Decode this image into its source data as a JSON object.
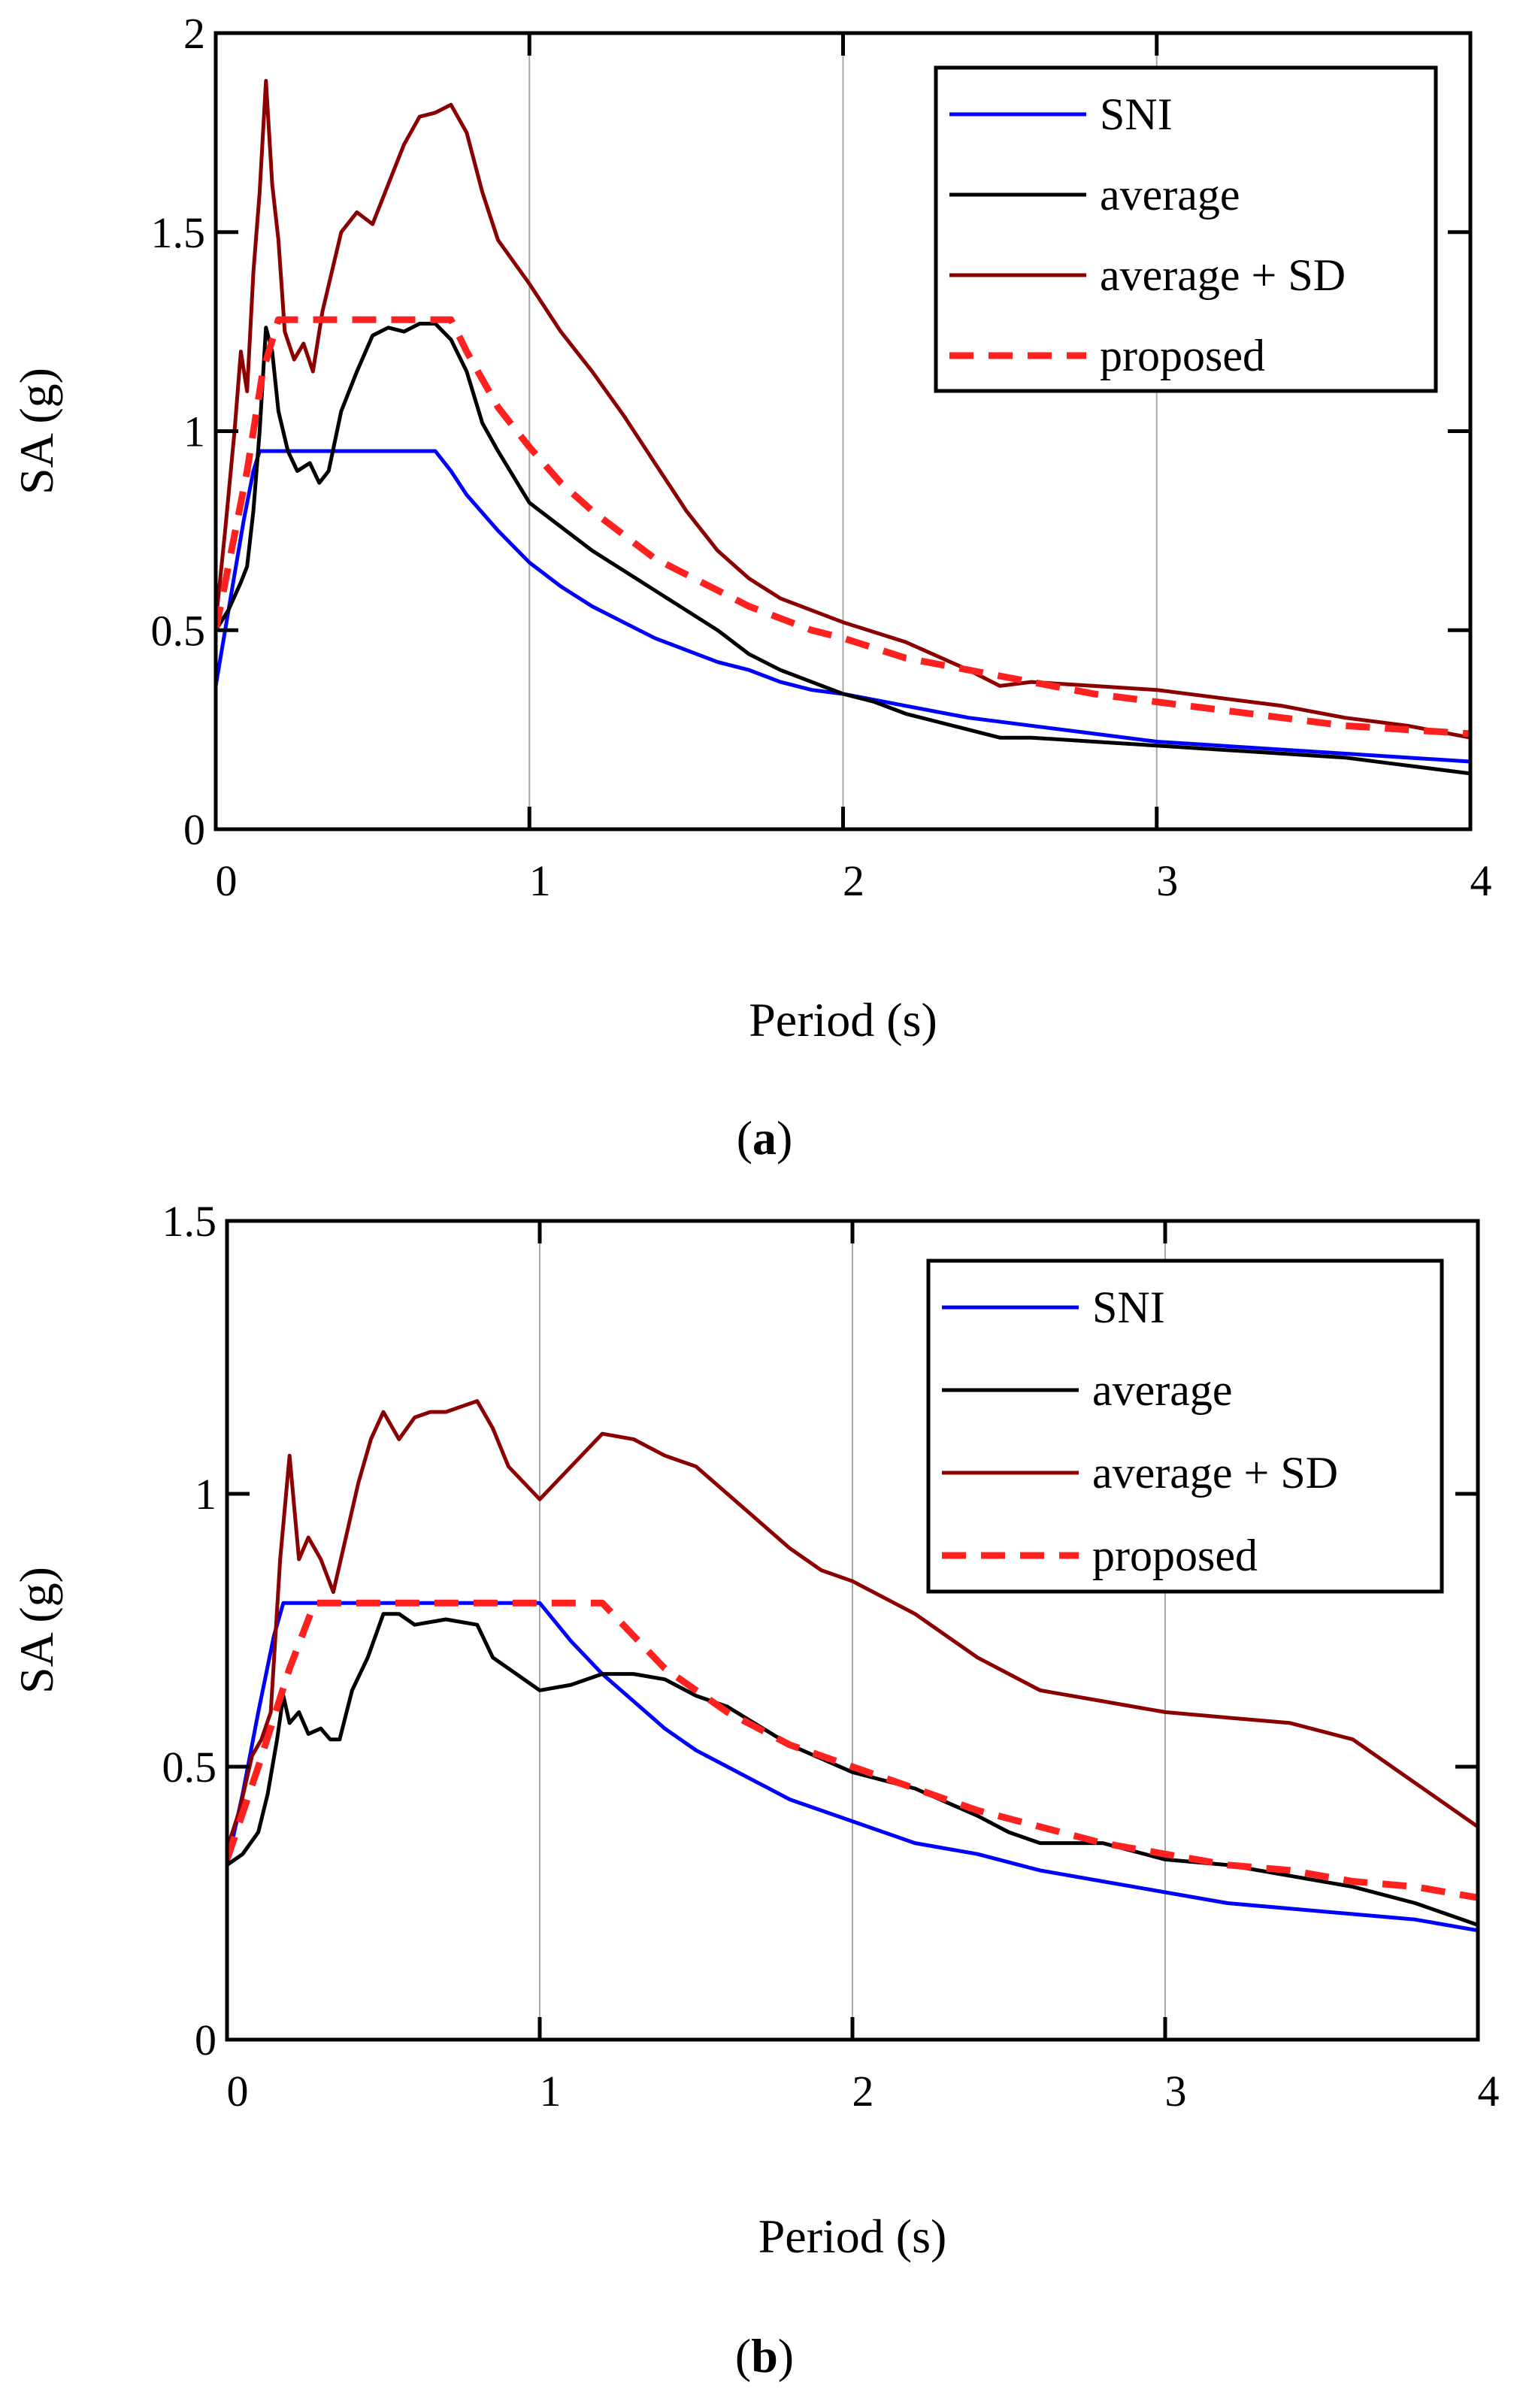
{
  "chart_data": [
    {
      "type": "line",
      "panel": "a",
      "panel_label": "a",
      "xlabel": "Period (s)",
      "ylabel": "SA (g)",
      "xlim": [
        0,
        4
      ],
      "ylim": [
        0,
        2
      ],
      "xticks": [
        0,
        1,
        2,
        3,
        4
      ],
      "xtick_labels": [
        "0",
        "1",
        "2",
        "3",
        "4"
      ],
      "yticks": [
        0,
        0.5,
        1,
        1.5,
        2
      ],
      "ytick_labels": [
        "0",
        "0.5",
        "1",
        "1.5",
        "2"
      ],
      "grid": "vertical",
      "legend": "top-right",
      "series": [
        {
          "name": "SNI",
          "color": "#0000ff",
          "dash": "solid",
          "x": [
            0,
            0.03,
            0.06,
            0.09,
            0.12,
            0.14,
            0.7,
            0.75,
            0.8,
            0.9,
            1.0,
            1.1,
            1.2,
            1.3,
            1.4,
            1.5,
            1.6,
            1.7,
            1.8,
            1.9,
            2.0,
            2.2,
            2.4,
            2.6,
            2.8,
            3.0,
            3.2,
            3.4,
            3.6,
            3.8,
            4.0
          ],
          "y": [
            0.36,
            0.5,
            0.64,
            0.78,
            0.9,
            0.95,
            0.95,
            0.9,
            0.84,
            0.75,
            0.67,
            0.61,
            0.56,
            0.52,
            0.48,
            0.45,
            0.42,
            0.4,
            0.37,
            0.35,
            0.34,
            0.31,
            0.28,
            0.26,
            0.24,
            0.22,
            0.21,
            0.2,
            0.19,
            0.18,
            0.17
          ]
        },
        {
          "name": "average",
          "color": "#000000",
          "dash": "solid",
          "x": [
            0,
            0.04,
            0.08,
            0.1,
            0.12,
            0.14,
            0.16,
            0.18,
            0.2,
            0.23,
            0.26,
            0.3,
            0.33,
            0.36,
            0.4,
            0.45,
            0.5,
            0.55,
            0.6,
            0.65,
            0.7,
            0.75,
            0.8,
            0.85,
            0.9,
            1.0,
            1.1,
            1.2,
            1.3,
            1.4,
            1.5,
            1.6,
            1.7,
            1.8,
            1.9,
            2.0,
            2.1,
            2.2,
            2.3,
            2.4,
            2.5,
            2.6,
            2.8,
            3.0,
            3.2,
            3.4,
            3.6,
            3.8,
            4.0
          ],
          "y": [
            0.5,
            0.55,
            0.62,
            0.66,
            0.8,
            1.0,
            1.26,
            1.2,
            1.05,
            0.95,
            0.9,
            0.92,
            0.87,
            0.9,
            1.05,
            1.15,
            1.24,
            1.26,
            1.25,
            1.27,
            1.27,
            1.23,
            1.15,
            1.02,
            0.95,
            0.82,
            0.76,
            0.7,
            0.65,
            0.6,
            0.55,
            0.5,
            0.44,
            0.4,
            0.37,
            0.34,
            0.32,
            0.29,
            0.27,
            0.25,
            0.23,
            0.23,
            0.22,
            0.21,
            0.2,
            0.19,
            0.18,
            0.16,
            0.14
          ]
        },
        {
          "name": "average + SD",
          "color": "#8b0000",
          "dash": "solid",
          "x": [
            0,
            0.03,
            0.06,
            0.08,
            0.1,
            0.12,
            0.14,
            0.16,
            0.18,
            0.2,
            0.22,
            0.25,
            0.28,
            0.31,
            0.34,
            0.37,
            0.4,
            0.45,
            0.5,
            0.55,
            0.6,
            0.65,
            0.7,
            0.75,
            0.8,
            0.85,
            0.9,
            1.0,
            1.1,
            1.2,
            1.3,
            1.4,
            1.5,
            1.6,
            1.7,
            1.8,
            1.9,
            2.0,
            2.2,
            2.4,
            2.5,
            2.6,
            2.8,
            3.0,
            3.2,
            3.4,
            3.6,
            3.8,
            4.0
          ],
          "y": [
            0.52,
            0.75,
            1.0,
            1.2,
            1.1,
            1.4,
            1.6,
            1.88,
            1.62,
            1.48,
            1.25,
            1.18,
            1.22,
            1.15,
            1.3,
            1.4,
            1.5,
            1.55,
            1.52,
            1.62,
            1.72,
            1.79,
            1.8,
            1.82,
            1.75,
            1.6,
            1.48,
            1.37,
            1.25,
            1.15,
            1.04,
            0.92,
            0.8,
            0.7,
            0.63,
            0.58,
            0.55,
            0.52,
            0.47,
            0.4,
            0.36,
            0.37,
            0.36,
            0.35,
            0.33,
            0.31,
            0.28,
            0.26,
            0.23
          ]
        },
        {
          "name": "proposed",
          "color": "#ff2020",
          "dash": "dashed",
          "x": [
            0,
            0.05,
            0.1,
            0.15,
            0.2,
            0.75,
            0.8,
            0.9,
            1.0,
            1.1,
            1.2,
            1.3,
            1.4,
            1.5,
            1.6,
            1.7,
            1.8,
            1.9,
            2.0,
            2.2,
            2.4,
            2.6,
            2.8,
            3.0,
            3.2,
            3.4,
            3.6,
            3.8,
            4.0
          ],
          "y": [
            0.5,
            0.7,
            0.9,
            1.15,
            1.28,
            1.28,
            1.2,
            1.06,
            0.96,
            0.87,
            0.8,
            0.74,
            0.68,
            0.64,
            0.6,
            0.56,
            0.53,
            0.5,
            0.48,
            0.43,
            0.4,
            0.37,
            0.34,
            0.32,
            0.3,
            0.28,
            0.26,
            0.25,
            0.24
          ]
        }
      ]
    },
    {
      "type": "line",
      "panel": "b",
      "panel_label": "b",
      "xlabel": "Period (s)",
      "ylabel": "SA (g)",
      "xlim": [
        0,
        4
      ],
      "ylim": [
        0,
        1.5
      ],
      "xticks": [
        0,
        1,
        2,
        3,
        4
      ],
      "xtick_labels": [
        "0",
        "1",
        "2",
        "3",
        "4"
      ],
      "yticks": [
        0,
        0.5,
        1,
        1.5
      ],
      "ytick_labels": [
        "0",
        "0.5",
        "1",
        "1.5"
      ],
      "grid": "vertical",
      "legend": "top-right",
      "series": [
        {
          "name": "SNI",
          "color": "#0000ff",
          "dash": "solid",
          "x": [
            0,
            0.05,
            0.1,
            0.15,
            0.18,
            1.0,
            1.1,
            1.2,
            1.3,
            1.4,
            1.5,
            1.6,
            1.8,
            2.0,
            2.2,
            2.4,
            2.6,
            2.8,
            3.0,
            3.2,
            3.4,
            3.6,
            3.8,
            4.0
          ],
          "y": [
            0.32,
            0.45,
            0.6,
            0.74,
            0.8,
            0.8,
            0.73,
            0.67,
            0.62,
            0.57,
            0.53,
            0.5,
            0.44,
            0.4,
            0.36,
            0.34,
            0.31,
            0.29,
            0.27,
            0.25,
            0.24,
            0.23,
            0.22,
            0.2
          ]
        },
        {
          "name": "average",
          "color": "#000000",
          "dash": "solid",
          "x": [
            0,
            0.05,
            0.1,
            0.13,
            0.16,
            0.18,
            0.2,
            0.23,
            0.26,
            0.3,
            0.33,
            0.36,
            0.4,
            0.45,
            0.5,
            0.55,
            0.6,
            0.7,
            0.8,
            0.85,
            0.9,
            1.0,
            1.1,
            1.2,
            1.3,
            1.4,
            1.5,
            1.6,
            1.8,
            2.0,
            2.2,
            2.4,
            2.5,
            2.6,
            2.8,
            3.0,
            3.2,
            3.4,
            3.6,
            3.8,
            4.0
          ],
          "y": [
            0.32,
            0.34,
            0.38,
            0.45,
            0.55,
            0.63,
            0.58,
            0.6,
            0.56,
            0.57,
            0.55,
            0.55,
            0.64,
            0.7,
            0.78,
            0.78,
            0.76,
            0.77,
            0.76,
            0.7,
            0.68,
            0.64,
            0.65,
            0.67,
            0.67,
            0.66,
            0.63,
            0.61,
            0.54,
            0.49,
            0.46,
            0.41,
            0.38,
            0.36,
            0.36,
            0.33,
            0.32,
            0.3,
            0.28,
            0.25,
            0.21
          ]
        },
        {
          "name": "average + SD",
          "color": "#8b0000",
          "dash": "solid",
          "x": [
            0,
            0.04,
            0.08,
            0.11,
            0.14,
            0.17,
            0.2,
            0.23,
            0.26,
            0.3,
            0.34,
            0.38,
            0.42,
            0.46,
            0.5,
            0.55,
            0.6,
            0.65,
            0.7,
            0.75,
            0.8,
            0.85,
            0.9,
            1.0,
            1.1,
            1.2,
            1.3,
            1.4,
            1.5,
            1.6,
            1.7,
            1.8,
            1.9,
            2.0,
            2.2,
            2.4,
            2.6,
            2.8,
            3.0,
            3.2,
            3.4,
            3.6,
            3.8,
            4.0
          ],
          "y": [
            0.35,
            0.42,
            0.52,
            0.55,
            0.6,
            0.88,
            1.07,
            0.88,
            0.92,
            0.88,
            0.82,
            0.92,
            1.02,
            1.1,
            1.15,
            1.1,
            1.14,
            1.15,
            1.15,
            1.16,
            1.17,
            1.12,
            1.05,
            0.99,
            1.05,
            1.11,
            1.1,
            1.07,
            1.05,
            1.0,
            0.95,
            0.9,
            0.86,
            0.84,
            0.78,
            0.7,
            0.64,
            0.62,
            0.6,
            0.59,
            0.58,
            0.55,
            0.47,
            0.39
          ]
        },
        {
          "name": "proposed",
          "color": "#ff2020",
          "dash": "dashed",
          "x": [
            0,
            0.1,
            0.2,
            0.28,
            1.2,
            1.3,
            1.4,
            1.5,
            1.6,
            1.8,
            2.0,
            2.2,
            2.4,
            2.6,
            2.8,
            3.0,
            3.2,
            3.4,
            3.6,
            3.8,
            4.0
          ],
          "y": [
            0.33,
            0.5,
            0.68,
            0.8,
            0.8,
            0.74,
            0.68,
            0.64,
            0.6,
            0.54,
            0.5,
            0.46,
            0.42,
            0.39,
            0.36,
            0.34,
            0.32,
            0.31,
            0.29,
            0.28,
            0.26
          ]
        }
      ]
    }
  ]
}
